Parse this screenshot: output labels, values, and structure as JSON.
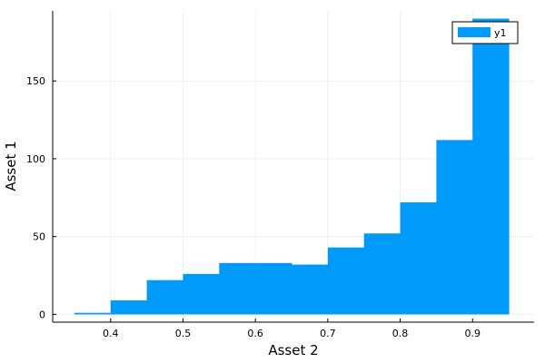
{
  "chart_data": {
    "type": "bar",
    "bins": [
      {
        "x0": 0.35,
        "x1": 0.4,
        "value": 1
      },
      {
        "x0": 0.4,
        "x1": 0.45,
        "value": 9
      },
      {
        "x0": 0.45,
        "x1": 0.5,
        "value": 22
      },
      {
        "x0": 0.5,
        "x1": 0.55,
        "value": 26
      },
      {
        "x0": 0.55,
        "x1": 0.6,
        "value": 33
      },
      {
        "x0": 0.6,
        "x1": 0.65,
        "value": 33
      },
      {
        "x0": 0.65,
        "x1": 0.7,
        "value": 32
      },
      {
        "x0": 0.7,
        "x1": 0.75,
        "value": 43
      },
      {
        "x0": 0.75,
        "x1": 0.8,
        "value": 52
      },
      {
        "x0": 0.8,
        "x1": 0.85,
        "value": 72
      },
      {
        "x0": 0.85,
        "x1": 0.9,
        "value": 112
      },
      {
        "x0": 0.9,
        "x1": 0.95,
        "value": 190
      }
    ],
    "series": [
      {
        "name": "y1",
        "color": "#009AFA"
      }
    ],
    "xlabel": "Asset 2",
    "ylabel": "Asset 1",
    "xlim": [
      0.32,
      0.985
    ],
    "ylim": [
      -5,
      195
    ],
    "xticks": [
      0.4,
      0.5,
      0.6,
      0.7,
      0.8,
      0.9
    ],
    "xtick_labels": [
      "0.4",
      "0.5",
      "0.6",
      "0.7",
      "0.8",
      "0.9"
    ],
    "yticks": [
      0,
      50,
      100,
      150
    ],
    "ytick_labels": [
      "0",
      "50",
      "100",
      "150"
    ],
    "grid": true,
    "legend_position": "top-right"
  }
}
